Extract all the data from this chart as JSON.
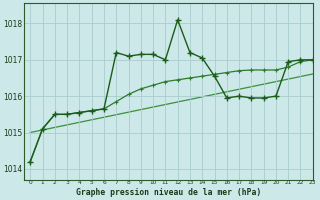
{
  "title": "Graphe pression niveau de la mer (hPa)",
  "background_color": "#cce8e8",
  "grid_color": "#aacccc",
  "line_color_main": "#1a5c1a",
  "line_color_smooth": "#2d7a2d",
  "line_color_linear": "#3d8f3d",
  "xlim": [
    -0.5,
    23
  ],
  "ylim": [
    1013.7,
    1018.55
  ],
  "yticks": [
    1014,
    1015,
    1016,
    1017,
    1018
  ],
  "xticks": [
    0,
    1,
    2,
    3,
    4,
    5,
    6,
    7,
    8,
    9,
    10,
    11,
    12,
    13,
    14,
    15,
    16,
    17,
    18,
    19,
    20,
    21,
    22,
    23
  ],
  "hours": [
    0,
    1,
    2,
    3,
    4,
    5,
    6,
    7,
    8,
    9,
    10,
    11,
    12,
    13,
    14,
    15,
    16,
    17,
    18,
    19,
    20,
    21,
    22,
    23
  ],
  "pressure_main": [
    1014.2,
    1015.1,
    1015.5,
    1015.5,
    1015.55,
    1015.6,
    1015.65,
    1017.2,
    1017.1,
    1017.15,
    1017.15,
    1017.0,
    1018.1,
    1017.2,
    1017.05,
    1016.55,
    1015.95,
    1016.0,
    1015.95,
    1015.95,
    1016.0,
    1016.95,
    1017.0,
    1017.0
  ],
  "pressure_smooth": [
    1014.2,
    1015.1,
    1015.5,
    1015.5,
    1015.55,
    1015.6,
    1015.65,
    1015.85,
    1016.05,
    1016.2,
    1016.3,
    1016.4,
    1016.45,
    1016.5,
    1016.55,
    1016.6,
    1016.65,
    1016.7,
    1016.72,
    1016.72,
    1016.72,
    1016.8,
    1016.95,
    1017.0
  ],
  "pressure_linear": [
    1015.0,
    1015.07,
    1015.14,
    1015.21,
    1015.28,
    1015.35,
    1015.42,
    1015.49,
    1015.56,
    1015.63,
    1015.7,
    1015.77,
    1015.84,
    1015.91,
    1015.98,
    1016.05,
    1016.12,
    1016.19,
    1016.26,
    1016.33,
    1016.4,
    1016.47,
    1016.54,
    1016.61
  ]
}
